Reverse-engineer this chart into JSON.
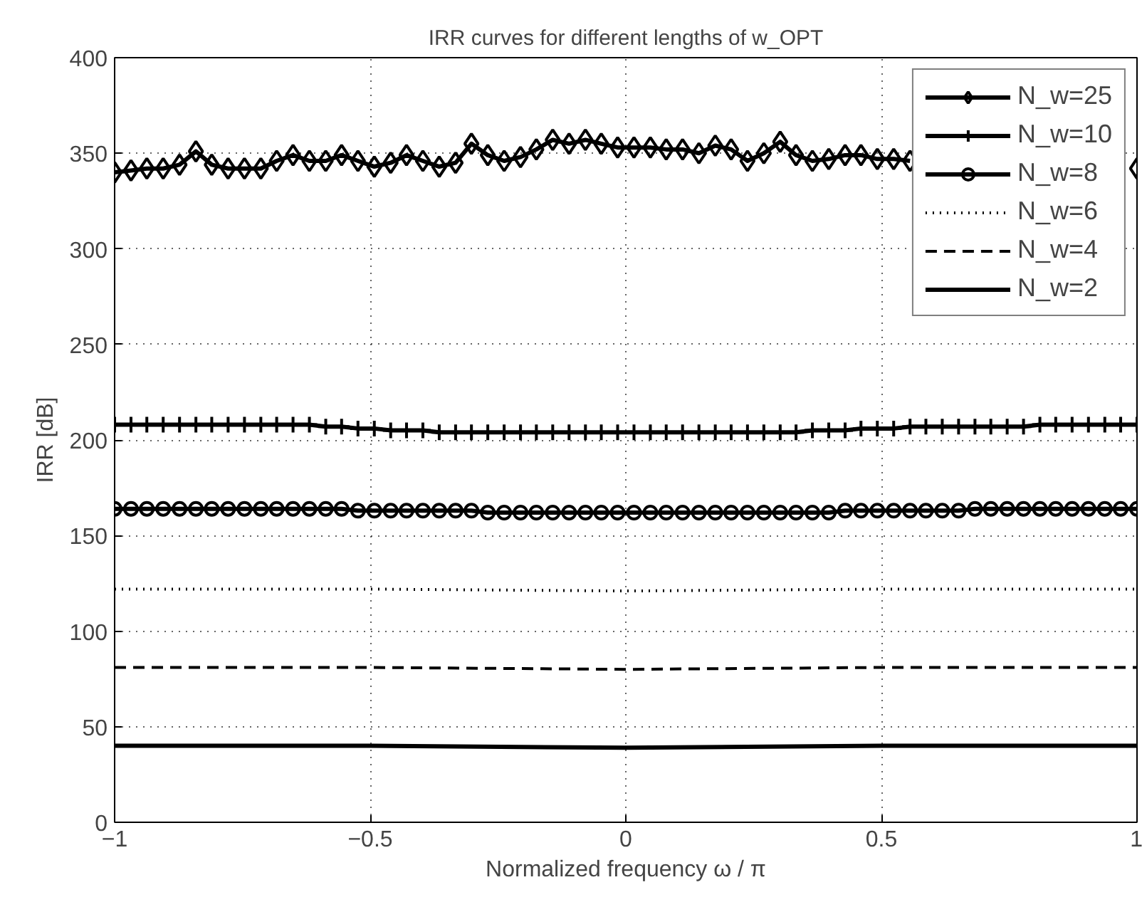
{
  "chart_data": {
    "type": "line",
    "title": "IRR curves for different lengths of w_OPT",
    "xlabel": "Normalized frequency ω / π",
    "ylabel": "IRR [dB]",
    "xlim": [
      -1,
      1
    ],
    "ylim": [
      0,
      400
    ],
    "xticks": [
      {
        "value": -1,
        "label": "−1"
      },
      {
        "value": -0.5,
        "label": "−0.5"
      },
      0,
      0.5,
      1
    ],
    "yticks": [
      0,
      50,
      100,
      150,
      200,
      250,
      300,
      350,
      400
    ],
    "grid": true,
    "legend": "top right",
    "series": [
      {
        "name": "N_w=25",
        "color": "#000000",
        "marker": "diamond",
        "line_style": "solid",
        "x": [
          -1,
          -0.968,
          -0.937,
          -0.905,
          -0.873,
          -0.841,
          -0.81,
          -0.778,
          -0.746,
          -0.714,
          -0.683,
          -0.651,
          -0.619,
          -0.587,
          -0.556,
          -0.524,
          -0.492,
          -0.46,
          -0.429,
          -0.397,
          -0.365,
          -0.333,
          -0.302,
          -0.27,
          -0.238,
          -0.206,
          -0.175,
          -0.143,
          -0.111,
          -0.079,
          -0.048,
          -0.016,
          0.016,
          0.048,
          0.079,
          0.111,
          0.143,
          0.175,
          0.206,
          0.238,
          0.27,
          0.302,
          0.333,
          0.365,
          0.397,
          0.429,
          0.46,
          0.492,
          0.524,
          0.556,
          0.587,
          0.619,
          0.651,
          0.683,
          0.714,
          0.746,
          0.778,
          0.81,
          0.841,
          0.873,
          0.905,
          0.937,
          0.968,
          1
        ],
        "values": [
          340,
          341,
          342,
          342,
          344,
          351,
          344,
          342,
          342,
          342,
          346,
          349,
          346,
          346,
          349,
          346,
          343,
          345,
          349,
          346,
          343,
          345,
          355,
          349,
          346,
          348,
          352,
          357,
          355,
          357,
          355,
          353,
          353,
          353,
          352,
          352,
          350,
          354,
          352,
          346,
          350,
          356,
          349,
          346,
          347,
          349,
          349,
          347,
          347,
          346,
          null,
          null,
          null,
          null,
          null,
          null,
          null,
          null,
          null,
          null,
          null,
          null,
          null,
          342
        ]
      },
      {
        "name": "N_w=10",
        "color": "#000000",
        "marker": "cross",
        "line_style": "solid",
        "x": [
          -1,
          -0.968,
          -0.937,
          -0.905,
          -0.873,
          -0.841,
          -0.81,
          -0.778,
          -0.746,
          -0.714,
          -0.683,
          -0.651,
          -0.619,
          -0.587,
          -0.556,
          -0.524,
          -0.492,
          -0.46,
          -0.429,
          -0.397,
          -0.365,
          -0.333,
          -0.302,
          -0.27,
          -0.238,
          -0.206,
          -0.175,
          -0.143,
          -0.111,
          -0.079,
          -0.048,
          -0.016,
          0.016,
          0.048,
          0.079,
          0.111,
          0.143,
          0.175,
          0.206,
          0.238,
          0.27,
          0.302,
          0.333,
          0.365,
          0.397,
          0.429,
          0.46,
          0.492,
          0.524,
          0.556,
          0.587,
          0.619,
          0.651,
          0.683,
          0.714,
          0.746,
          0.778,
          0.81,
          0.841,
          0.873,
          0.905,
          0.937,
          0.968,
          1
        ],
        "values": [
          208,
          208,
          208,
          208,
          208,
          208,
          208,
          208,
          208,
          208,
          208,
          208,
          208,
          207,
          207,
          206,
          206,
          205,
          205,
          205,
          204,
          204,
          204,
          204,
          204,
          204,
          204,
          204,
          204,
          204,
          204,
          204,
          204,
          204,
          204,
          204,
          204,
          204,
          204,
          204,
          204,
          204,
          204,
          205,
          205,
          205,
          206,
          206,
          206,
          207,
          207,
          207,
          207,
          207,
          207,
          207,
          207,
          208,
          208,
          208,
          208,
          208,
          208,
          208
        ]
      },
      {
        "name": "N_w=8",
        "color": "#000000",
        "marker": "circle",
        "line_style": "solid",
        "x": [
          -1,
          -0.968,
          -0.937,
          -0.905,
          -0.873,
          -0.841,
          -0.81,
          -0.778,
          -0.746,
          -0.714,
          -0.683,
          -0.651,
          -0.619,
          -0.587,
          -0.556,
          -0.524,
          -0.492,
          -0.46,
          -0.429,
          -0.397,
          -0.365,
          -0.333,
          -0.302,
          -0.27,
          -0.238,
          -0.206,
          -0.175,
          -0.143,
          -0.111,
          -0.079,
          -0.048,
          -0.016,
          0.016,
          0.048,
          0.079,
          0.111,
          0.143,
          0.175,
          0.206,
          0.238,
          0.27,
          0.302,
          0.333,
          0.365,
          0.397,
          0.429,
          0.46,
          0.492,
          0.524,
          0.556,
          0.587,
          0.619,
          0.651,
          0.683,
          0.714,
          0.746,
          0.778,
          0.81,
          0.841,
          0.873,
          0.905,
          0.937,
          0.968,
          1
        ],
        "values": [
          164,
          164,
          164,
          164,
          164,
          164,
          164,
          164,
          164,
          164,
          164,
          164,
          164,
          164,
          164,
          163,
          163,
          163,
          163,
          163,
          163,
          163,
          163,
          162,
          162,
          162,
          162,
          162,
          162,
          162,
          162,
          162,
          162,
          162,
          162,
          162,
          162,
          162,
          162,
          162,
          162,
          162,
          162,
          162,
          162,
          163,
          163,
          163,
          163,
          163,
          163,
          163,
          163,
          164,
          164,
          164,
          164,
          164,
          164,
          164,
          164,
          164,
          164,
          164
        ]
      },
      {
        "name": "N_w=6",
        "color": "#000000",
        "marker": "none",
        "line_style": "dotted",
        "x": [
          -1,
          -0.5,
          0,
          0.5,
          1
        ],
        "values": [
          122,
          122,
          121,
          122,
          122
        ]
      },
      {
        "name": "N_w=4",
        "color": "#000000",
        "marker": "none",
        "line_style": "dashed",
        "x": [
          -1,
          -0.5,
          0,
          0.5,
          1
        ],
        "values": [
          81,
          81,
          80,
          81,
          81
        ]
      },
      {
        "name": "N_w=2",
        "color": "#000000",
        "marker": "none",
        "line_style": "solid",
        "x": [
          -1,
          -0.5,
          0,
          0.5,
          1
        ],
        "values": [
          40,
          40,
          39,
          40,
          40
        ]
      }
    ]
  }
}
